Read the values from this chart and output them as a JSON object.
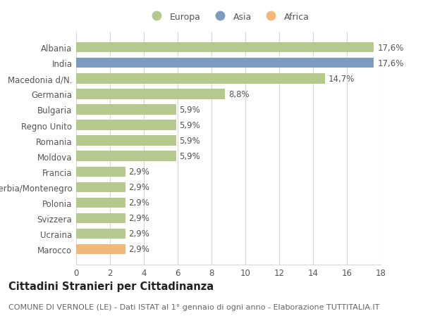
{
  "categories": [
    "Albania",
    "India",
    "Macedonia d/N.",
    "Germania",
    "Bulgaria",
    "Regno Unito",
    "Romania",
    "Moldova",
    "Francia",
    "Serbia/Montenegro",
    "Polonia",
    "Svizzera",
    "Ucraina",
    "Marocco"
  ],
  "values": [
    17.6,
    17.6,
    14.7,
    8.8,
    5.9,
    5.9,
    5.9,
    5.9,
    2.9,
    2.9,
    2.9,
    2.9,
    2.9,
    2.9
  ],
  "labels": [
    "17,6%",
    "17,6%",
    "14,7%",
    "8,8%",
    "5,9%",
    "5,9%",
    "5,9%",
    "5,9%",
    "2,9%",
    "2,9%",
    "2,9%",
    "2,9%",
    "2,9%",
    "2,9%"
  ],
  "bar_colors": [
    "#b5c98e",
    "#7b9bbf",
    "#b5c98e",
    "#b5c98e",
    "#b5c98e",
    "#b5c98e",
    "#b5c98e",
    "#b5c98e",
    "#b5c98e",
    "#b5c98e",
    "#b5c98e",
    "#b5c98e",
    "#b5c98e",
    "#f0b97a"
  ],
  "legend_labels": [
    "Europa",
    "Asia",
    "Africa"
  ],
  "legend_colors": [
    "#b5c98e",
    "#7b9bbf",
    "#f0b97a"
  ],
  "xlim": [
    0,
    18
  ],
  "xticks": [
    0,
    2,
    4,
    6,
    8,
    10,
    12,
    14,
    16,
    18
  ],
  "title": "Cittadini Stranieri per Cittadinanza",
  "subtitle": "COMUNE DI VERNOLE (LE) - Dati ISTAT al 1° gennaio di ogni anno - Elaborazione TUTTITALIA.IT",
  "bg_color": "#ffffff",
  "grid_color": "#d8d8d8",
  "bar_height": 0.65,
  "label_fontsize": 8.5,
  "tick_fontsize": 8.5,
  "title_fontsize": 10.5,
  "subtitle_fontsize": 8.0
}
